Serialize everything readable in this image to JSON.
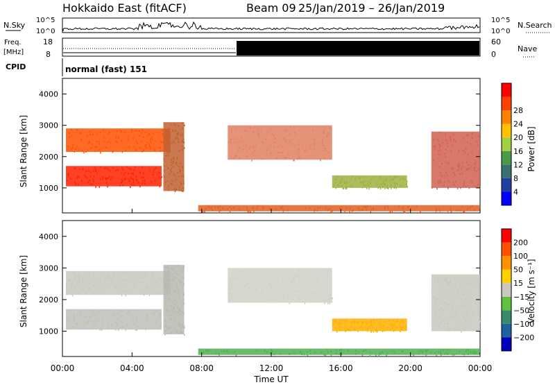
{
  "header": {
    "station": "Hokkaido East (fitACF)",
    "beam": "Beam 09",
    "date_range": "25/Jan/2019 – 26/Jan/2019"
  },
  "strips": {
    "nsky_label": "N.Sky",
    "nsky_ticks": [
      "10^5",
      "10^0"
    ],
    "nsearch_label": "N.Search",
    "nsearch_ticks": [
      "10^5",
      "10^0"
    ],
    "freq_label_1": "Freq.",
    "freq_label_2": "[MHz]",
    "freq_ticks": [
      "18",
      "8"
    ],
    "nave_label": "Nave",
    "nave_ticks": [
      "60",
      "0"
    ],
    "cpid_label": "CPID",
    "cpid_text": "normal (fast) 151"
  },
  "axes": {
    "xlabel": "Time UT",
    "x_ticks": [
      "00:00",
      "04:00",
      "08:00",
      "12:00",
      "16:00",
      "20:00",
      "00:00"
    ],
    "ylabel": "Slant Range [km]",
    "y_ticks": [
      "1000",
      "2000",
      "3000",
      "4000"
    ]
  },
  "colorbars": {
    "power_label": "Power [dB]",
    "power_ticks": [
      "4",
      "8",
      "12",
      "16",
      "20",
      "24",
      "28"
    ],
    "power_colors": [
      "#0000ff",
      "#2040a0",
      "#3a7070",
      "#4a9a4a",
      "#a0d040",
      "#ffc000",
      "#ff8000",
      "#ff4000",
      "#ff0000"
    ],
    "velocity_label": "Velocity [m s⁻¹]",
    "velocity_ticks": [
      "200",
      "100",
      "50",
      "15",
      "−15",
      "−50",
      "−100",
      "−200"
    ],
    "velocity_colors": [
      "#0000c0",
      "#2060a0",
      "#3a8a6a",
      "#60c040",
      "#c8c8c0",
      "#ffd000",
      "#ff9000",
      "#ff5000",
      "#ff0000"
    ]
  },
  "chart_data": [
    {
      "type": "heatmap",
      "name": "power",
      "xlim_hours": [
        0,
        24
      ],
      "ylim_km": [
        200,
        4500
      ],
      "regions": [
        {
          "t0": 0.2,
          "t1": 5.7,
          "r0": 1050,
          "r1": 1700,
          "color": "#ff2000"
        },
        {
          "t0": 0.2,
          "t1": 6.2,
          "r0": 2150,
          "r1": 2900,
          "color": "#ff5000"
        },
        {
          "t0": 5.8,
          "t1": 7.0,
          "r0": 900,
          "r1": 3100,
          "color": "#c06030"
        },
        {
          "t0": 7.8,
          "t1": 24.0,
          "r0": 250,
          "r1": 450,
          "color": "#e06020"
        },
        {
          "t0": 9.5,
          "t1": 15.5,
          "r0": 1900,
          "r1": 3000,
          "color": "#e08060"
        },
        {
          "t0": 15.5,
          "t1": 19.8,
          "r0": 1000,
          "r1": 1400,
          "color": "#a0b040"
        },
        {
          "t0": 21.2,
          "t1": 24.0,
          "r0": 1000,
          "r1": 2800,
          "color": "#d06050"
        }
      ]
    },
    {
      "type": "heatmap",
      "name": "velocity",
      "xlim_hours": [
        0,
        24
      ],
      "ylim_km": [
        200,
        4500
      ],
      "regions": [
        {
          "t0": 0.2,
          "t1": 5.7,
          "r0": 1050,
          "r1": 1700,
          "color": "#c0c0b8"
        },
        {
          "t0": 0.2,
          "t1": 6.2,
          "r0": 2150,
          "r1": 2900,
          "color": "#c8c8c0"
        },
        {
          "t0": 5.8,
          "t1": 7.0,
          "r0": 900,
          "r1": 3100,
          "color": "#b8b8b0"
        },
        {
          "t0": 7.8,
          "t1": 24.0,
          "r0": 250,
          "r1": 450,
          "color": "#50b050"
        },
        {
          "t0": 9.5,
          "t1": 15.5,
          "r0": 1900,
          "r1": 3000,
          "color": "#d0d0c8"
        },
        {
          "t0": 15.5,
          "t1": 19.8,
          "r0": 1000,
          "r1": 1400,
          "color": "#ffb000"
        },
        {
          "t0": 21.2,
          "t1": 24.0,
          "r0": 1000,
          "r1": 2800,
          "color": "#c8c8c0"
        }
      ]
    }
  ]
}
